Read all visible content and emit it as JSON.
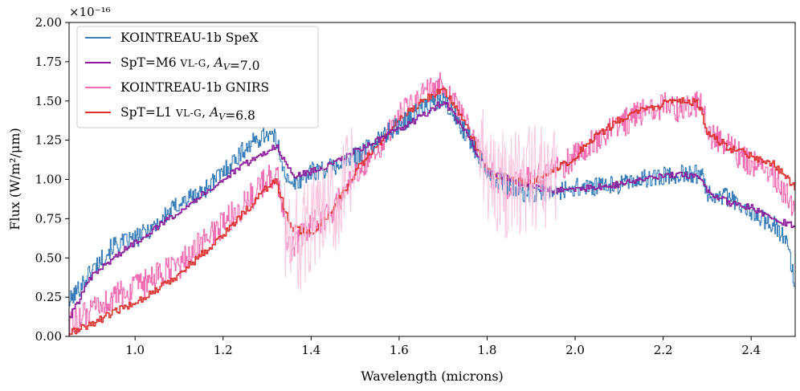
{
  "chart_data": {
    "type": "line",
    "title": "",
    "xlabel": "Wavelength (microns)",
    "ylabel": "Flux (W/m²/μm)",
    "y_multiplier": "×10⁻¹⁶",
    "xlim": [
      0.85,
      2.5
    ],
    "ylim": [
      0.0,
      2.0
    ],
    "xticks": [
      1.0,
      1.2,
      1.4,
      1.6,
      1.8,
      2.0,
      2.2,
      2.4
    ],
    "xtick_labels": [
      "1.0",
      "1.2",
      "1.4",
      "1.6",
      "1.8",
      "2.0",
      "2.2",
      "2.4"
    ],
    "yticks": [
      0.0,
      0.25,
      0.5,
      0.75,
      1.0,
      1.25,
      1.5,
      1.75,
      2.0
    ],
    "ytick_labels": [
      "0.00",
      "0.25",
      "0.50",
      "0.75",
      "1.00",
      "1.25",
      "1.50",
      "1.75",
      "2.00"
    ],
    "legend_position": "top-left",
    "series": [
      {
        "name": "KOINTREAU-1b SpeX",
        "color": "#3a7fb9",
        "noise": 0.06,
        "x": [
          0.85,
          0.9,
          0.95,
          1.0,
          1.05,
          1.1,
          1.15,
          1.2,
          1.25,
          1.3,
          1.32,
          1.35,
          1.4,
          1.45,
          1.5,
          1.55,
          1.6,
          1.65,
          1.7,
          1.75,
          1.8,
          1.85,
          1.9,
          1.95,
          2.0,
          2.05,
          2.1,
          2.15,
          2.2,
          2.25,
          2.29,
          2.3,
          2.35,
          2.4,
          2.45,
          2.48,
          2.5
        ],
        "y": [
          0.22,
          0.42,
          0.58,
          0.62,
          0.72,
          0.85,
          0.92,
          1.05,
          1.2,
          1.3,
          1.25,
          0.95,
          1.05,
          1.08,
          1.15,
          1.25,
          1.35,
          1.45,
          1.5,
          1.3,
          1.05,
          0.95,
          0.9,
          0.92,
          0.95,
          0.95,
          0.97,
          1.0,
          1.02,
          1.04,
          1.03,
          0.92,
          0.88,
          0.78,
          0.72,
          0.6,
          0.3
        ]
      },
      {
        "name": "SpT=M6 VL-G, A_V=7.0",
        "color": "#8b1a9b",
        "noise": 0.02,
        "x": [
          0.85,
          0.9,
          0.95,
          1.0,
          1.05,
          1.1,
          1.15,
          1.2,
          1.25,
          1.3,
          1.32,
          1.33,
          1.36,
          1.4,
          1.45,
          1.5,
          1.55,
          1.6,
          1.65,
          1.7,
          1.75,
          1.8,
          1.85,
          1.9,
          1.95,
          2.0,
          2.05,
          2.1,
          2.15,
          2.2,
          2.25,
          2.28,
          2.3,
          2.35,
          2.4,
          2.45,
          2.5
        ],
        "y": [
          0.12,
          0.38,
          0.5,
          0.6,
          0.7,
          0.8,
          0.9,
          1.0,
          1.1,
          1.18,
          1.22,
          1.15,
          1.02,
          1.05,
          1.1,
          1.18,
          1.25,
          1.32,
          1.4,
          1.5,
          1.3,
          1.05,
          1.0,
          0.95,
          0.93,
          0.94,
          0.95,
          0.97,
          1.0,
          1.02,
          1.03,
          1.02,
          0.92,
          0.85,
          0.82,
          0.75,
          0.7
        ]
      },
      {
        "name": "KOINTREAU-1b GNIRS",
        "color": "#f36fb4",
        "noise": 0.09,
        "x": [
          0.85,
          0.9,
          0.95,
          1.0,
          1.05,
          1.1,
          1.15,
          1.2,
          1.25,
          1.3,
          1.32,
          1.35,
          1.4,
          1.45,
          1.5,
          1.55,
          1.6,
          1.65,
          1.7,
          1.75,
          1.8,
          1.85,
          1.9,
          1.95,
          2.0,
          2.05,
          2.1,
          2.15,
          2.2,
          2.25,
          2.29,
          2.3,
          2.35,
          2.4,
          2.45,
          2.5
        ],
        "y": [
          0.08,
          0.15,
          0.25,
          0.3,
          0.38,
          0.45,
          0.6,
          0.72,
          0.85,
          1.0,
          1.05,
          0.55,
          0.7,
          0.8,
          1.05,
          1.2,
          1.4,
          1.55,
          1.6,
          1.35,
          1.05,
          0.95,
          1.0,
          1.05,
          1.15,
          1.25,
          1.35,
          1.42,
          1.47,
          1.45,
          1.48,
          1.3,
          1.2,
          1.1,
          1.02,
          0.8
        ]
      },
      {
        "name": "SpT=L1 VL-G, A_V=6.8",
        "color": "#e0302e",
        "noise": 0.025,
        "x": [
          0.85,
          0.9,
          0.95,
          1.0,
          1.05,
          1.1,
          1.15,
          1.2,
          1.25,
          1.3,
          1.32,
          1.33,
          1.35,
          1.4,
          1.45,
          1.5,
          1.55,
          1.6,
          1.65,
          1.7,
          1.75,
          1.8,
          1.85,
          1.9,
          1.95,
          2.0,
          2.05,
          2.1,
          2.15,
          2.2,
          2.25,
          2.28,
          2.3,
          2.35,
          2.4,
          2.45,
          2.5
        ],
        "y": [
          0.02,
          0.08,
          0.15,
          0.22,
          0.3,
          0.4,
          0.52,
          0.65,
          0.8,
          0.95,
          1.0,
          0.9,
          0.7,
          0.65,
          0.82,
          1.05,
          1.22,
          1.38,
          1.5,
          1.58,
          1.35,
          1.05,
          1.0,
          0.97,
          1.05,
          1.15,
          1.28,
          1.38,
          1.44,
          1.48,
          1.5,
          1.48,
          1.3,
          1.2,
          1.15,
          1.1,
          0.95
        ]
      }
    ],
    "legend": [
      {
        "name": "KOINTREAU-1b SpeX",
        "color": "#3a7fb9",
        "parts": [
          [
            "KOINTREAU-1b SpeX",
            ""
          ]
        ]
      },
      {
        "name": "SpT=M6 VL-G, A_V=7.0",
        "color": "#8b1a9b",
        "parts": [
          [
            "SpT=M6 ",
            ""
          ],
          [
            "VL-G",
            "sc"
          ],
          [
            ", ",
            ""
          ],
          [
            "A",
            "it"
          ],
          [
            "V",
            "sub"
          ],
          [
            "=7.0",
            ""
          ]
        ]
      },
      {
        "name": "KOINTREAU-1b GNIRS",
        "color": "#f36fb4",
        "parts": [
          [
            "KOINTREAU-1b GNIRS",
            ""
          ]
        ]
      },
      {
        "name": "SpT=L1 VL-G, A_V=6.8",
        "color": "#e0302e",
        "parts": [
          [
            "SpT=L1 ",
            ""
          ],
          [
            "VL-G",
            "sc"
          ],
          [
            ", ",
            ""
          ],
          [
            "A",
            "it"
          ],
          [
            "V",
            "sub"
          ],
          [
            "=6.8",
            ""
          ]
        ]
      }
    ]
  }
}
